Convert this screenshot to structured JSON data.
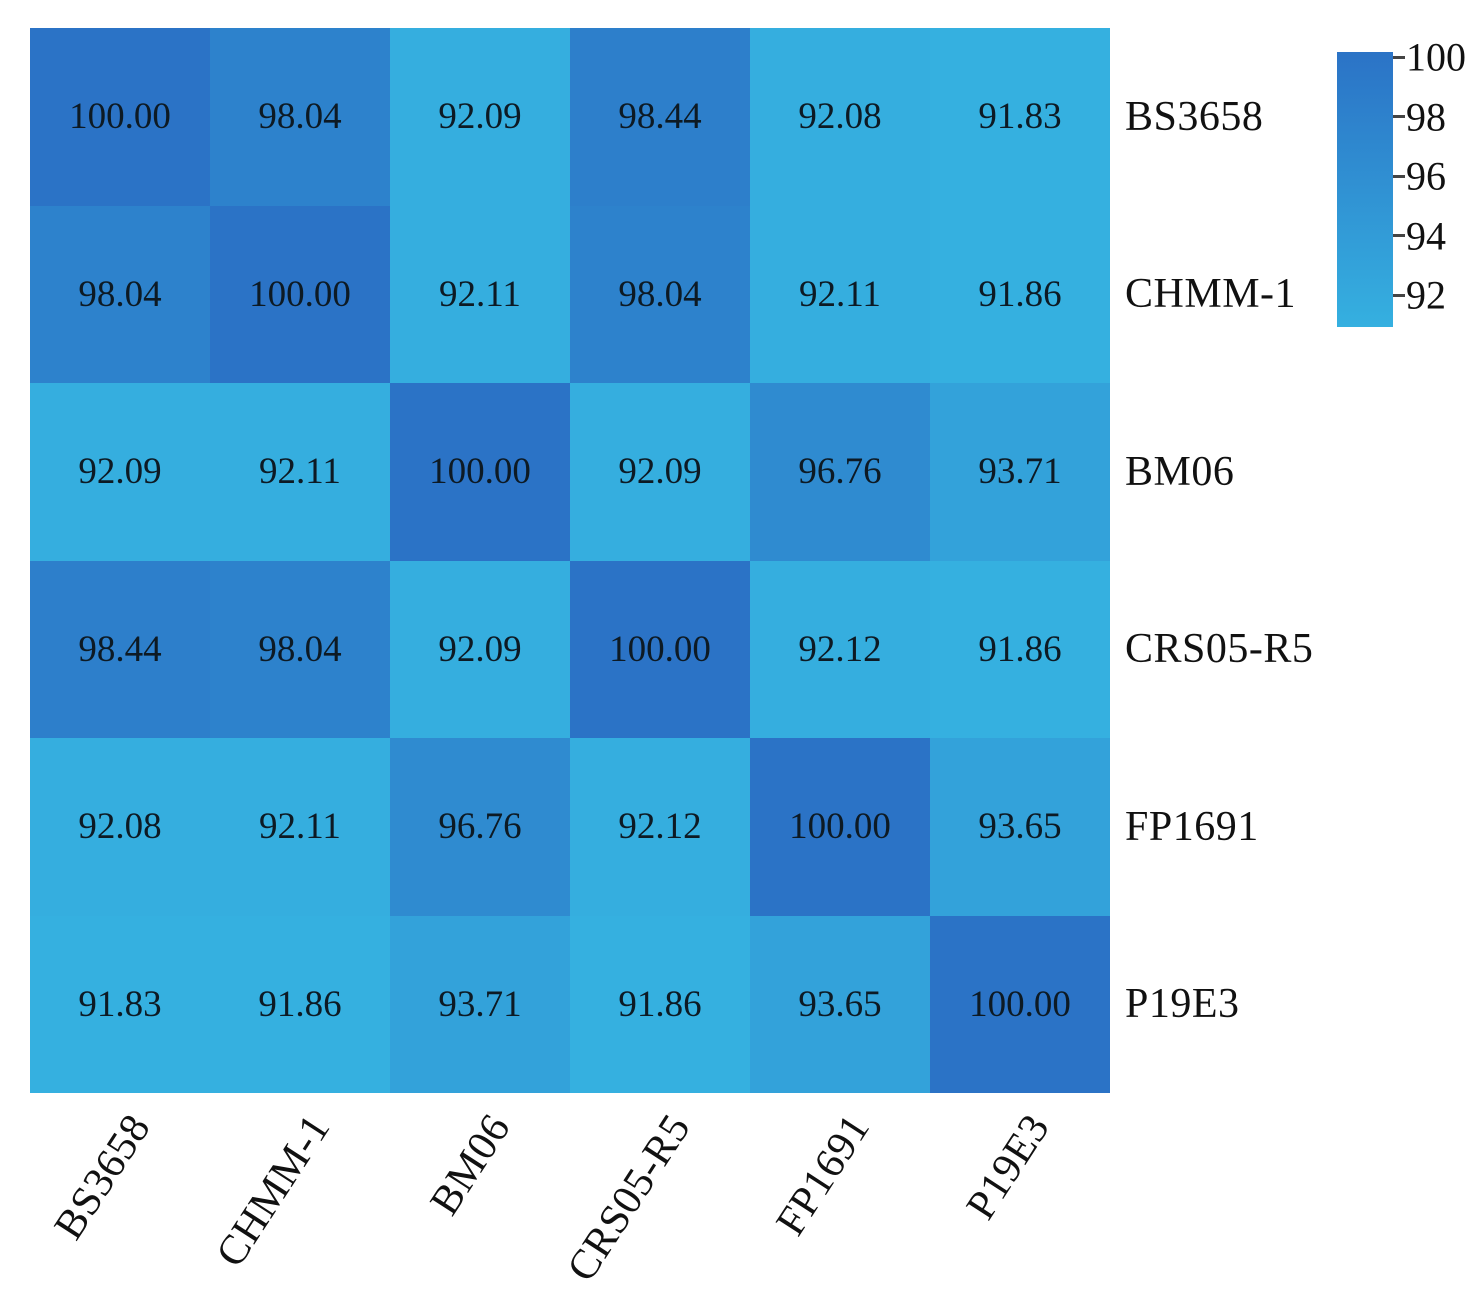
{
  "chart_data": {
    "type": "heatmap",
    "labels": [
      "BS3658",
      "CHMM-1",
      "BM06",
      "CRS05-R5",
      "FP1691",
      "P19E3"
    ],
    "matrix": [
      [
        100.0,
        98.04,
        92.09,
        98.44,
        92.08,
        91.83
      ],
      [
        98.04,
        100.0,
        92.11,
        98.04,
        92.11,
        91.86
      ],
      [
        92.09,
        92.11,
        100.0,
        92.09,
        96.76,
        93.71
      ],
      [
        98.44,
        98.04,
        92.09,
        100.0,
        92.12,
        91.86
      ],
      [
        92.08,
        92.11,
        96.76,
        92.12,
        100.0,
        93.65
      ],
      [
        91.83,
        91.86,
        93.71,
        91.86,
        93.65,
        100.0
      ]
    ],
    "value_decimals": 2,
    "colorbar": {
      "position": "right",
      "ticks": [
        100,
        98,
        96,
        94,
        92
      ],
      "vmin": 91.83,
      "vmax": 100,
      "color_min": "#35b0e0",
      "color_max": "#2b73c6"
    },
    "grid": false,
    "title": "",
    "xlabel": "",
    "ylabel": ""
  }
}
